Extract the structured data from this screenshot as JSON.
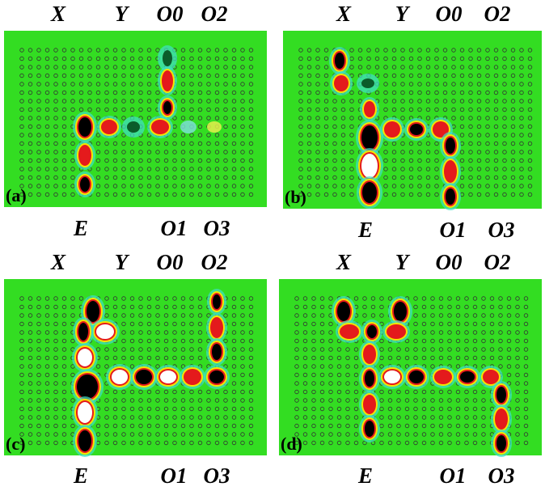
{
  "panels": [
    {
      "label": "(a)",
      "top_labels": [
        "X",
        "Y",
        "O0",
        "O2"
      ],
      "bottom_labels": [
        "E",
        "O1",
        "O3"
      ]
    },
    {
      "label": "(b)",
      "top_labels": [
        "X",
        "Y",
        "O0",
        "O2"
      ],
      "bottom_labels": [
        "E",
        "O1",
        "O3"
      ]
    },
    {
      "label": "(c)",
      "top_labels": [
        "X",
        "Y",
        "O0",
        "O2"
      ],
      "bottom_labels": [
        "E",
        "O1",
        "O3"
      ]
    },
    {
      "label": "(d)",
      "top_labels": [
        "X",
        "Y",
        "O0",
        "O2"
      ],
      "bottom_labels": [
        "E",
        "O1",
        "O3"
      ]
    }
  ]
}
